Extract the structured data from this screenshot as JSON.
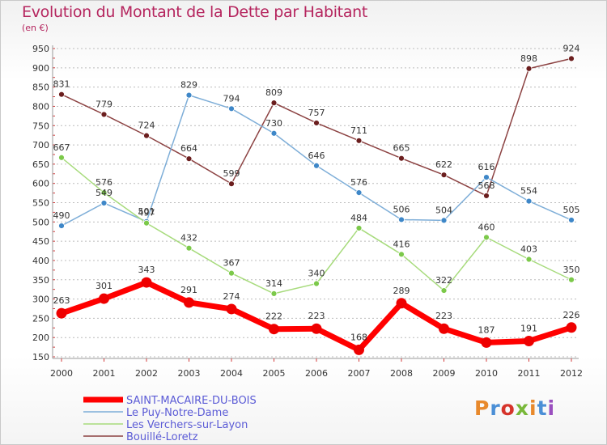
{
  "header": {
    "title": "Evolution du Montant de la Dette par Habitant",
    "unit": "(en €)"
  },
  "logo": {
    "text": "Proxiti",
    "colors": [
      "#e8892c",
      "#4b8fd6",
      "#d6342b",
      "#79b83a",
      "#e8892c",
      "#4b8fd6",
      "#9a4fbf"
    ]
  },
  "chart_data": {
    "type": "line",
    "x": [
      "2000",
      "2001",
      "2002",
      "2003",
      "2004",
      "2005",
      "2006",
      "2007",
      "2008",
      "2009",
      "2010",
      "2011",
      "2012"
    ],
    "ylim": [
      150,
      950
    ],
    "yticks": [
      150,
      200,
      250,
      300,
      350,
      400,
      450,
      500,
      550,
      600,
      650,
      700,
      750,
      800,
      850,
      900,
      950
    ],
    "grid": "horizontal dashed",
    "legend_position": "bottom-left",
    "series": [
      {
        "name": "SAINT-MACAIRE-DU-BOIS",
        "color": "#ff0000",
        "marker_color": "#ee0000",
        "values": [
          263,
          301,
          343,
          291,
          274,
          222,
          223,
          168,
          289,
          223,
          187,
          191,
          226
        ],
        "labels": [
          "263",
          "301",
          "343",
          "291",
          "274",
          "222",
          "223",
          "168",
          "289",
          "223",
          "187",
          "191",
          "226"
        ],
        "line_width": 7,
        "marker_radius": 6.5,
        "legend_text_color": "#5b5bd6"
      },
      {
        "name": "Le Puy-Notre-Dame",
        "color": "#7eaed8",
        "marker_color": "#3e87c8",
        "values": [
          490,
          549,
          501,
          829,
          794,
          730,
          646,
          576,
          506,
          504,
          616,
          554,
          505
        ],
        "labels": [
          "490",
          "549",
          "501",
          "829",
          "794",
          "730",
          "646",
          "576",
          "506",
          "504",
          "616",
          "554",
          "505"
        ],
        "line_width": 1.5,
        "marker_radius": 3.5,
        "legend_text_color": "#5b5bd6"
      },
      {
        "name": "Les Verchers-sur-Layon",
        "color": "#a7db7c",
        "marker_color": "#7cc94a",
        "values": [
          667,
          576,
          497,
          432,
          367,
          314,
          340,
          484,
          416,
          322,
          460,
          403,
          350
        ],
        "labels": [
          "667",
          "576",
          "497",
          "432",
          "367",
          "314",
          "340",
          "484",
          "416",
          "322",
          "460",
          "403",
          "350"
        ],
        "line_width": 1.5,
        "marker_radius": 3.5,
        "legend_text_color": "#5b5bd6"
      },
      {
        "name": "Bouillé-Loretz",
        "color": "#8c4242",
        "marker_color": "#6b1e1e",
        "values": [
          831,
          779,
          724,
          664,
          599,
          809,
          757,
          711,
          665,
          622,
          568,
          898,
          924
        ],
        "labels": [
          "831",
          "779",
          "724",
          "664",
          "599",
          "809",
          "757",
          "711",
          "665",
          "622",
          "568",
          "898",
          "924"
        ],
        "line_width": 1.5,
        "marker_radius": 3.5,
        "legend_text_color": "#5b5bd6"
      }
    ]
  }
}
